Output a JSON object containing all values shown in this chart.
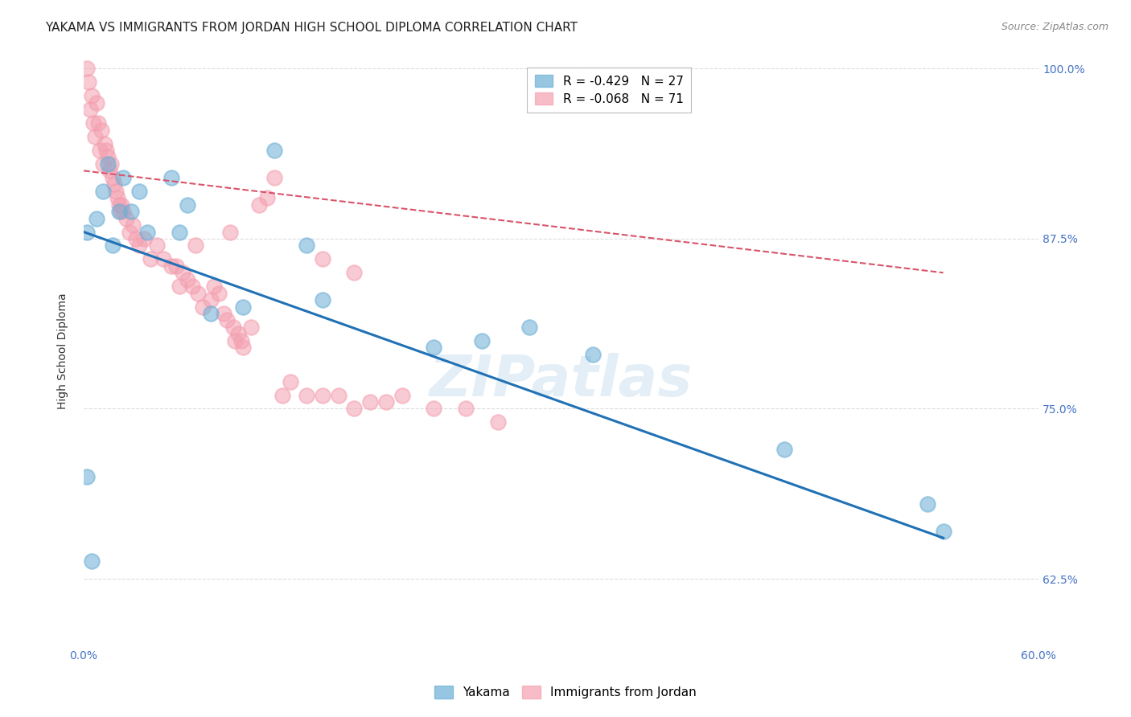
{
  "title": "YAKAMA VS IMMIGRANTS FROM JORDAN HIGH SCHOOL DIPLOMA CORRELATION CHART",
  "source": "Source: ZipAtlas.com",
  "ylabel_label": "High School Diploma",
  "x_min": 0.0,
  "x_max": 0.6,
  "y_min": 0.575,
  "y_max": 1.01,
  "x_ticks": [
    0.0,
    0.1,
    0.2,
    0.3,
    0.4,
    0.5,
    0.6
  ],
  "x_tick_labels": [
    "0.0%",
    "",
    "",
    "",
    "",
    "",
    "60.0%"
  ],
  "y_ticks": [
    0.625,
    0.75,
    0.875,
    1.0
  ],
  "y_tick_labels": [
    "62.5%",
    "75.0%",
    "87.5%",
    "100.0%"
  ],
  "legend_items": [
    {
      "label": "R = -0.429   N = 27",
      "color": "#6baed6"
    },
    {
      "label": "R = -0.068   N = 71",
      "color": "#f4a0b0"
    }
  ],
  "legend_names": [
    "Yakama",
    "Immigrants from Jordan"
  ],
  "blue_color": "#6baed6",
  "pink_color": "#f4a0b0",
  "blue_line_color": "#2171b5",
  "pink_line_color": "#d9536a",
  "watermark": "ZIPatlas",
  "blue_scatter_x": [
    0.002,
    0.008,
    0.012,
    0.015,
    0.018,
    0.022,
    0.025,
    0.03,
    0.035,
    0.04,
    0.055,
    0.06,
    0.065,
    0.08,
    0.12,
    0.14,
    0.25,
    0.28,
    0.32,
    0.44,
    0.53,
    0.54,
    0.002,
    0.005,
    0.1,
    0.15,
    0.22
  ],
  "blue_scatter_y": [
    0.88,
    0.89,
    0.91,
    0.93,
    0.87,
    0.895,
    0.92,
    0.895,
    0.91,
    0.88,
    0.92,
    0.88,
    0.9,
    0.82,
    0.94,
    0.87,
    0.8,
    0.81,
    0.79,
    0.72,
    0.68,
    0.66,
    0.7,
    0.638,
    0.825,
    0.83,
    0.795
  ],
  "pink_scatter_x": [
    0.002,
    0.003,
    0.004,
    0.005,
    0.006,
    0.007,
    0.008,
    0.009,
    0.01,
    0.011,
    0.012,
    0.013,
    0.014,
    0.015,
    0.016,
    0.017,
    0.018,
    0.019,
    0.02,
    0.021,
    0.022,
    0.023,
    0.024,
    0.025,
    0.027,
    0.029,
    0.031,
    0.033,
    0.035,
    0.038,
    0.042,
    0.046,
    0.05,
    0.055,
    0.058,
    0.06,
    0.062,
    0.065,
    0.068,
    0.07,
    0.072,
    0.075,
    0.08,
    0.082,
    0.085,
    0.088,
    0.09,
    0.092,
    0.094,
    0.095,
    0.097,
    0.099,
    0.1,
    0.105,
    0.11,
    0.115,
    0.12,
    0.125,
    0.13,
    0.14,
    0.15,
    0.16,
    0.17,
    0.18,
    0.19,
    0.2,
    0.22,
    0.24,
    0.26,
    0.15,
    0.17
  ],
  "pink_scatter_y": [
    1.0,
    0.99,
    0.97,
    0.98,
    0.96,
    0.95,
    0.975,
    0.96,
    0.94,
    0.955,
    0.93,
    0.945,
    0.94,
    0.935,
    0.925,
    0.93,
    0.92,
    0.915,
    0.91,
    0.905,
    0.9,
    0.895,
    0.9,
    0.895,
    0.89,
    0.88,
    0.885,
    0.875,
    0.87,
    0.875,
    0.86,
    0.87,
    0.86,
    0.855,
    0.855,
    0.84,
    0.85,
    0.845,
    0.84,
    0.87,
    0.835,
    0.825,
    0.83,
    0.84,
    0.835,
    0.82,
    0.815,
    0.88,
    0.81,
    0.8,
    0.805,
    0.8,
    0.795,
    0.81,
    0.9,
    0.905,
    0.92,
    0.76,
    0.77,
    0.76,
    0.76,
    0.76,
    0.75,
    0.755,
    0.755,
    0.76,
    0.75,
    0.75,
    0.74,
    0.86,
    0.85
  ],
  "blue_line_x": [
    0.0,
    0.54
  ],
  "blue_line_y": [
    0.88,
    0.655
  ],
  "pink_line_x": [
    0.0,
    0.54
  ],
  "pink_line_y": [
    0.925,
    0.85
  ],
  "background_color": "#ffffff",
  "grid_color": "#dddddd",
  "tick_color": "#4472c4",
  "title_fontsize": 11,
  "axis_label_fontsize": 10
}
